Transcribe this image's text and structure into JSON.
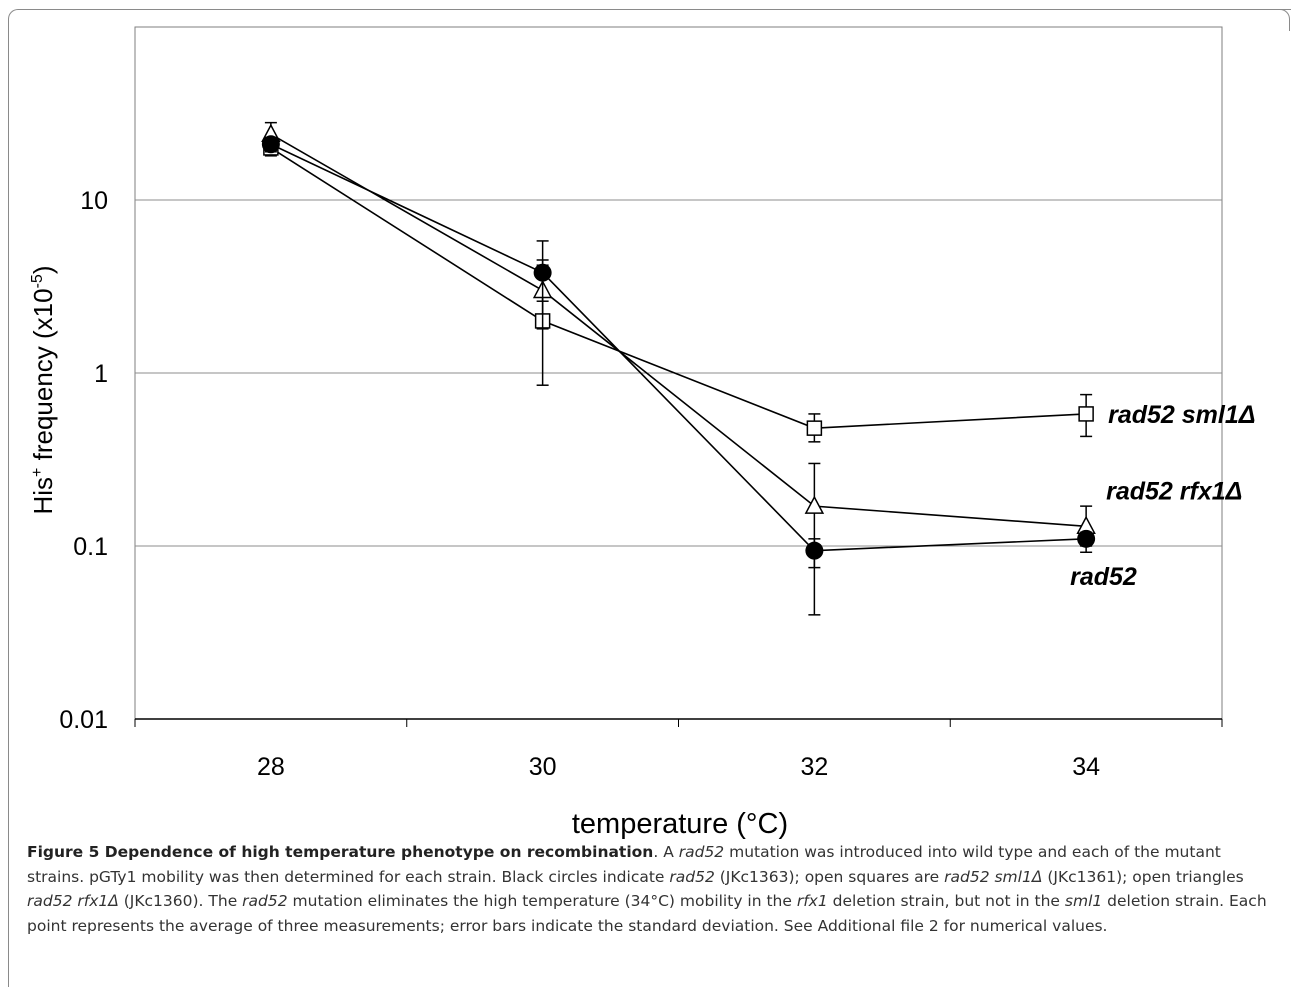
{
  "chart_data": {
    "type": "line",
    "xlabel": "temperature (°C)",
    "ylabel": "His",
    "ylabel_sup": "+",
    "ylabel_rest": " frequency (x10",
    "ylabel_exp": "-5",
    "ylabel_end": ")",
    "y_scale": "log",
    "ylim": [
      0.01,
      100
    ],
    "y_ticks": [
      "0.01",
      "0.1",
      "1",
      "10"
    ],
    "y_tick_values": [
      0.01,
      0.1,
      1,
      10
    ],
    "categories": [
      "28",
      "30",
      "32",
      "34"
    ],
    "grid": true,
    "series": [
      {
        "name": "rad52 sml1Δ",
        "marker": "open-square",
        "values": [
          20,
          2.0,
          0.48,
          0.58
        ],
        "error_low": [
          18,
          0.85,
          0.4,
          0.43
        ],
        "error_high": [
          22,
          4.5,
          0.58,
          0.75
        ]
      },
      {
        "name": "rad52 rfx1Δ",
        "marker": "open-triangle",
        "values": [
          24,
          3.0,
          0.17,
          0.13
        ],
        "error_low": [
          20,
          1.8,
          0.075,
          0.1
        ],
        "error_high": [
          28,
          4.2,
          0.3,
          0.17
        ]
      },
      {
        "name": "rad52",
        "marker": "filled-circle",
        "values": [
          21,
          3.8,
          0.094,
          0.11
        ],
        "error_low": [
          19,
          2.6,
          0.04,
          0.092
        ],
        "error_high": [
          23,
          5.8,
          0.11,
          0.12
        ]
      }
    ]
  },
  "caption": {
    "title": "Figure 5 Dependence of high temperature phenotype on recombination",
    "p01": ". A ",
    "p02": "rad52",
    "p03": " mutation was introduced into wild type and each of the mutant strains. pGTy1 mobility was then determined for each strain. Black circles indicate ",
    "p04": "rad52",
    "p05": " (JKc1363); open squares are ",
    "p06": "rad52 sml1Δ",
    "p07": " (JKc1361); open triangles ",
    "p08": "rad52 rfx1Δ",
    "p09": " (JKc1360). The ",
    "p10": "rad52",
    "p11": " mutation eliminates the high temperature (34°C) mobility in the ",
    "p12": "rfx1",
    "p13": " deletion strain, but not in the ",
    "p14": "sml1",
    "p15": " deletion strain. Each point represents the average of three measurements; error bars indicate the standard deviation. See Additional file 2 for numerical values."
  }
}
